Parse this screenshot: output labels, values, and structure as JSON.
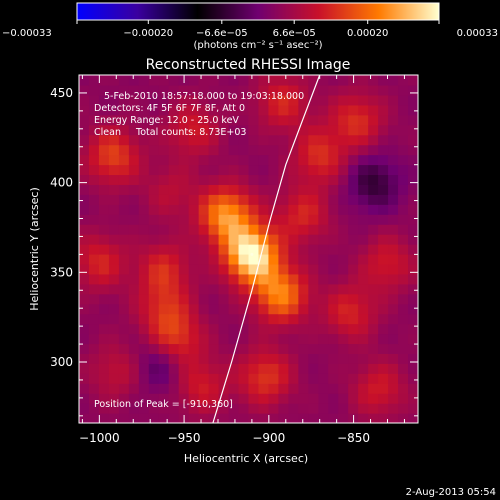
{
  "chart_data": {
    "type": "heatmap",
    "title": "Reconstructed RHESSI Image",
    "xlabel": "Heliocentric X (arcsec)",
    "ylabel": "Heliocentric Y (arcsec)",
    "xlim": [
      -1012,
      -812
    ],
    "ylim": [
      266,
      460
    ],
    "xticks": [
      -1000,
      -950,
      -900,
      -850
    ],
    "xtick_labels": [
      "−1000",
      "−950",
      "−900",
      "−850"
    ],
    "yticks": [
      300,
      350,
      400,
      450
    ],
    "ytick_labels": [
      "300",
      "350",
      "400",
      "450"
    ],
    "colorbar": {
      "range": [
        -0.00033,
        0.00033
      ],
      "ticks": [
        -0.00033,
        -0.0002,
        -6.6e-05,
        6.6e-05,
        0.0002,
        0.00033
      ],
      "tick_labels": [
        "−0.00033",
        "−0.00020",
        "−6.6e−05",
        "6.6e−05",
        "0.00020",
        "0.00033"
      ],
      "units_label": "(photons cm⁻² s⁻¹ asec⁻²)",
      "colormap": [
        "#0000ff",
        "#3a00a0",
        "#000000",
        "#700070",
        "#c8102a",
        "#ff7a00",
        "#ffffd0"
      ]
    },
    "info_lines": [
      "5-Feb-2010 18:57:18.000 to 19:03:18.000",
      "Detectors: 4F 5F 6F 7F 8F, Att 0",
      "Energy Range: 12.0 - 25.0 keV",
      "Clean     Total counts: 8.73E+03"
    ],
    "peak_label": "Position of Peak = [-910,360]",
    "peak": [
      -910,
      360
    ],
    "peak_value": 0.00033,
    "blobs": [
      {
        "x": -910,
        "y": 360,
        "value": 0.00033
      },
      {
        "x": -925,
        "y": 382,
        "value": 0.00024
      },
      {
        "x": -893,
        "y": 338,
        "value": 0.00022
      },
      {
        "x": -870,
        "y": 415,
        "value": 0.00014
      },
      {
        "x": -848,
        "y": 435,
        "value": 0.00014
      },
      {
        "x": -955,
        "y": 312,
        "value": 0.00016
      },
      {
        "x": -962,
        "y": 330,
        "value": 0.00012
      },
      {
        "x": -992,
        "y": 415,
        "value": 0.00016
      },
      {
        "x": -1000,
        "y": 356,
        "value": 0.00013
      },
      {
        "x": -945,
        "y": 430,
        "value": 0.00012
      },
      {
        "x": -892,
        "y": 445,
        "value": 0.00013
      },
      {
        "x": -852,
        "y": 328,
        "value": 0.00013
      },
      {
        "x": -830,
        "y": 355,
        "value": 0.00012
      },
      {
        "x": -962,
        "y": 352,
        "value": 0.00013
      },
      {
        "x": -902,
        "y": 292,
        "value": 0.00015
      },
      {
        "x": -940,
        "y": 287,
        "value": 0.00012
      },
      {
        "x": -835,
        "y": 285,
        "value": 0.00012
      },
      {
        "x": -880,
        "y": 382,
        "value": 0.00013
      },
      {
        "x": -958,
        "y": 395,
        "value": 9e-05
      },
      {
        "x": -990,
        "y": 295,
        "value": 0.0001
      },
      {
        "x": -838,
        "y": 400,
        "value": -6e-05
      },
      {
        "x": -963,
        "y": 300,
        "value": -5e-05
      }
    ],
    "limb_curve": [
      [
        -933,
        266
      ],
      [
        -922,
        300
      ],
      [
        -910,
        340
      ],
      [
        -899,
        380
      ],
      [
        -890,
        410
      ],
      [
        -880,
        435
      ],
      [
        -870,
        460
      ]
    ],
    "date_stamp": "2-Aug-2013 05:54"
  }
}
